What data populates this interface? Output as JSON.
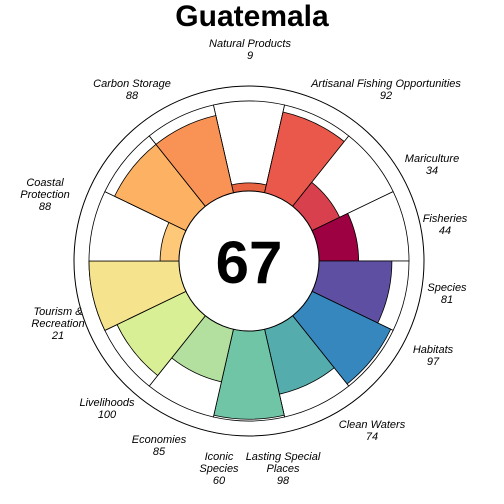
{
  "chart_data": {
    "type": "flower",
    "title": "Guatemala",
    "center_score": "67",
    "max_value": 100,
    "petals": [
      {
        "label": [
          "Natural Products"
        ],
        "value": 9,
        "color": "#e8633f"
      },
      {
        "label": [
          "Artisanal Fishing Opportunities"
        ],
        "value": 92,
        "color": "#e9584a"
      },
      {
        "label": [
          "Mariculture"
        ],
        "value": 34,
        "color": "#d8404e"
      },
      {
        "label": [
          "Fisheries"
        ],
        "value": 44,
        "color": "#9e0142"
      },
      {
        "label": [
          "Species"
        ],
        "value": 81,
        "color": "#5e4fa2"
      },
      {
        "label": [
          "Habitats"
        ],
        "value": 97,
        "color": "#3587bd"
      },
      {
        "label": [
          "Clean Waters"
        ],
        "value": 74,
        "color": "#54adac"
      },
      {
        "label": [
          "Lasting Special",
          "Places"
        ],
        "value": 98,
        "color": "#6fc5a5"
      },
      {
        "label": [
          "Iconic",
          "Species"
        ],
        "value": 60,
        "color": "#b3df9f"
      },
      {
        "label": [
          "Economies"
        ],
        "value": 85,
        "color": "#d9ef95"
      },
      {
        "label": [
          "Livelihoods"
        ],
        "value": 100,
        "color": "#f6e38d"
      },
      {
        "label": [
          "Tourism &",
          "Recreation"
        ],
        "value": 21,
        "color": "#fdc878"
      },
      {
        "label": [
          "Coastal",
          "Protection"
        ],
        "value": 88,
        "color": "#fdb263"
      },
      {
        "label": [
          "Carbon Storage"
        ],
        "value": 88,
        "color": "#f99355"
      }
    ]
  }
}
